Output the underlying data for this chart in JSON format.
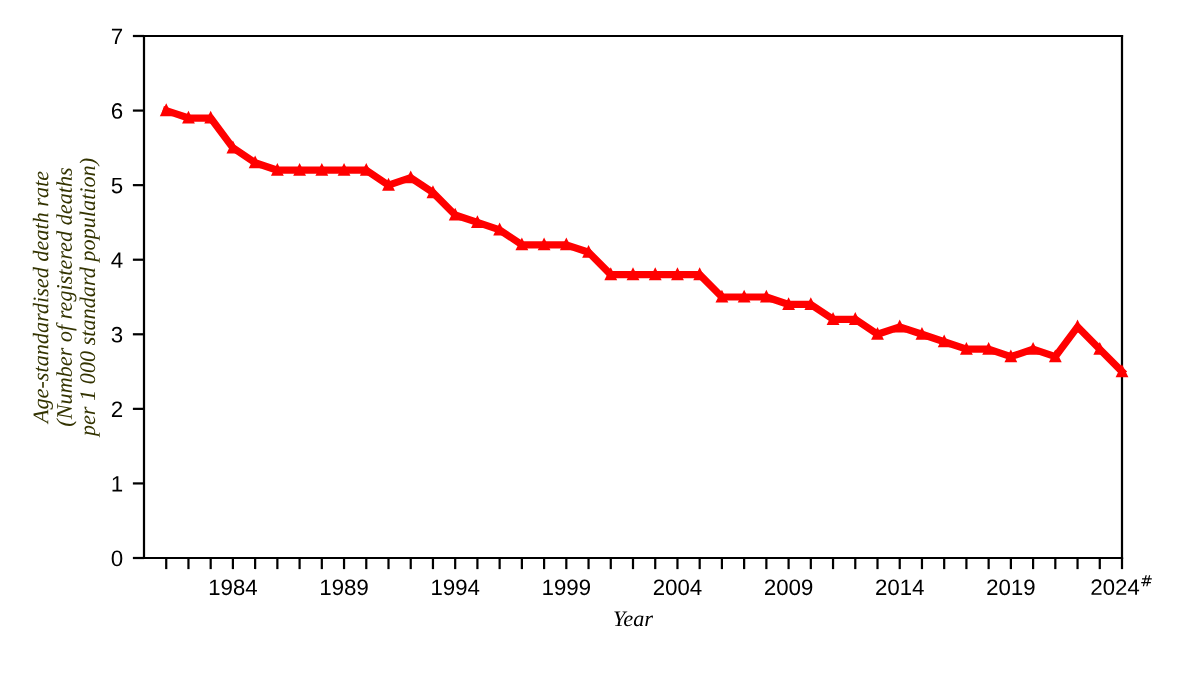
{
  "chart_data": {
    "type": "line",
    "xlabel": "Year",
    "ylabel": "Age-standardised death rate\n(Number of registered deaths\nper 1 000 standard population)",
    "x": [
      1981,
      1982,
      1983,
      1984,
      1985,
      1986,
      1987,
      1988,
      1989,
      1990,
      1991,
      1992,
      1993,
      1994,
      1995,
      1996,
      1997,
      1998,
      1999,
      2000,
      2001,
      2002,
      2003,
      2004,
      2005,
      2006,
      2007,
      2008,
      2009,
      2010,
      2011,
      2012,
      2013,
      2014,
      2015,
      2016,
      2017,
      2018,
      2019,
      2020,
      2021,
      2022,
      2023,
      2024
    ],
    "series": [
      {
        "color": "#ff0000",
        "values": [
          6.0,
          5.9,
          5.9,
          5.5,
          5.3,
          5.2,
          5.2,
          5.2,
          5.2,
          5.2,
          5.0,
          5.1,
          4.9,
          4.6,
          4.5,
          4.4,
          4.2,
          4.2,
          4.2,
          4.1,
          3.8,
          3.8,
          3.8,
          3.8,
          3.8,
          3.5,
          3.5,
          3.5,
          3.4,
          3.4,
          3.2,
          3.2,
          3.0,
          3.1,
          3.0,
          2.9,
          2.8,
          2.8,
          2.7,
          2.8,
          2.7,
          3.1,
          2.8,
          2.5
        ]
      }
    ],
    "xlim": [
      1980,
      2024
    ],
    "xticks": [
      {
        "value": 1981,
        "label": null
      },
      {
        "value": 1982,
        "label": null
      },
      {
        "value": 1983,
        "label": null
      },
      1984,
      {
        "value": 1985,
        "label": null
      },
      {
        "value": 1986,
        "label": null
      },
      {
        "value": 1987,
        "label": null
      },
      {
        "value": 1988,
        "label": null
      },
      1989,
      {
        "value": 1990,
        "label": null
      },
      {
        "value": 1991,
        "label": null
      },
      {
        "value": 1992,
        "label": null
      },
      {
        "value": 1993,
        "label": null
      },
      1994,
      {
        "value": 1995,
        "label": null
      },
      {
        "value": 1996,
        "label": null
      },
      {
        "value": 1997,
        "label": null
      },
      {
        "value": 1998,
        "label": null
      },
      1999,
      {
        "value": 2000,
        "label": null
      },
      {
        "value": 2001,
        "label": null
      },
      {
        "value": 2002,
        "label": null
      },
      {
        "value": 2003,
        "label": null
      },
      2004,
      {
        "value": 2005,
        "label": null
      },
      {
        "value": 2006,
        "label": null
      },
      {
        "value": 2007,
        "label": null
      },
      {
        "value": 2008,
        "label": null
      },
      2009,
      {
        "value": 2010,
        "label": null
      },
      {
        "value": 2011,
        "label": null
      },
      {
        "value": 2012,
        "label": null
      },
      {
        "value": 2013,
        "label": null
      },
      2014,
      {
        "value": 2015,
        "label": null
      },
      {
        "value": 2016,
        "label": null
      },
      {
        "value": 2017,
        "label": null
      },
      {
        "value": 2018,
        "label": null
      },
      2019,
      {
        "value": 2020,
        "label": null
      },
      {
        "value": 2021,
        "label": null
      },
      {
        "value": 2022,
        "label": null
      },
      {
        "value": 2023,
        "label": null
      },
      {
        "value": 2024,
        "label": "2024$^{#}$"
      }
    ],
    "ylim": [
      0,
      7
    ],
    "yticks": [
      0,
      1,
      2,
      3,
      4,
      5,
      6,
      7
    ],
    "grid": false,
    "legend": false,
    "marker": "triangle",
    "line_style": "solid"
  }
}
